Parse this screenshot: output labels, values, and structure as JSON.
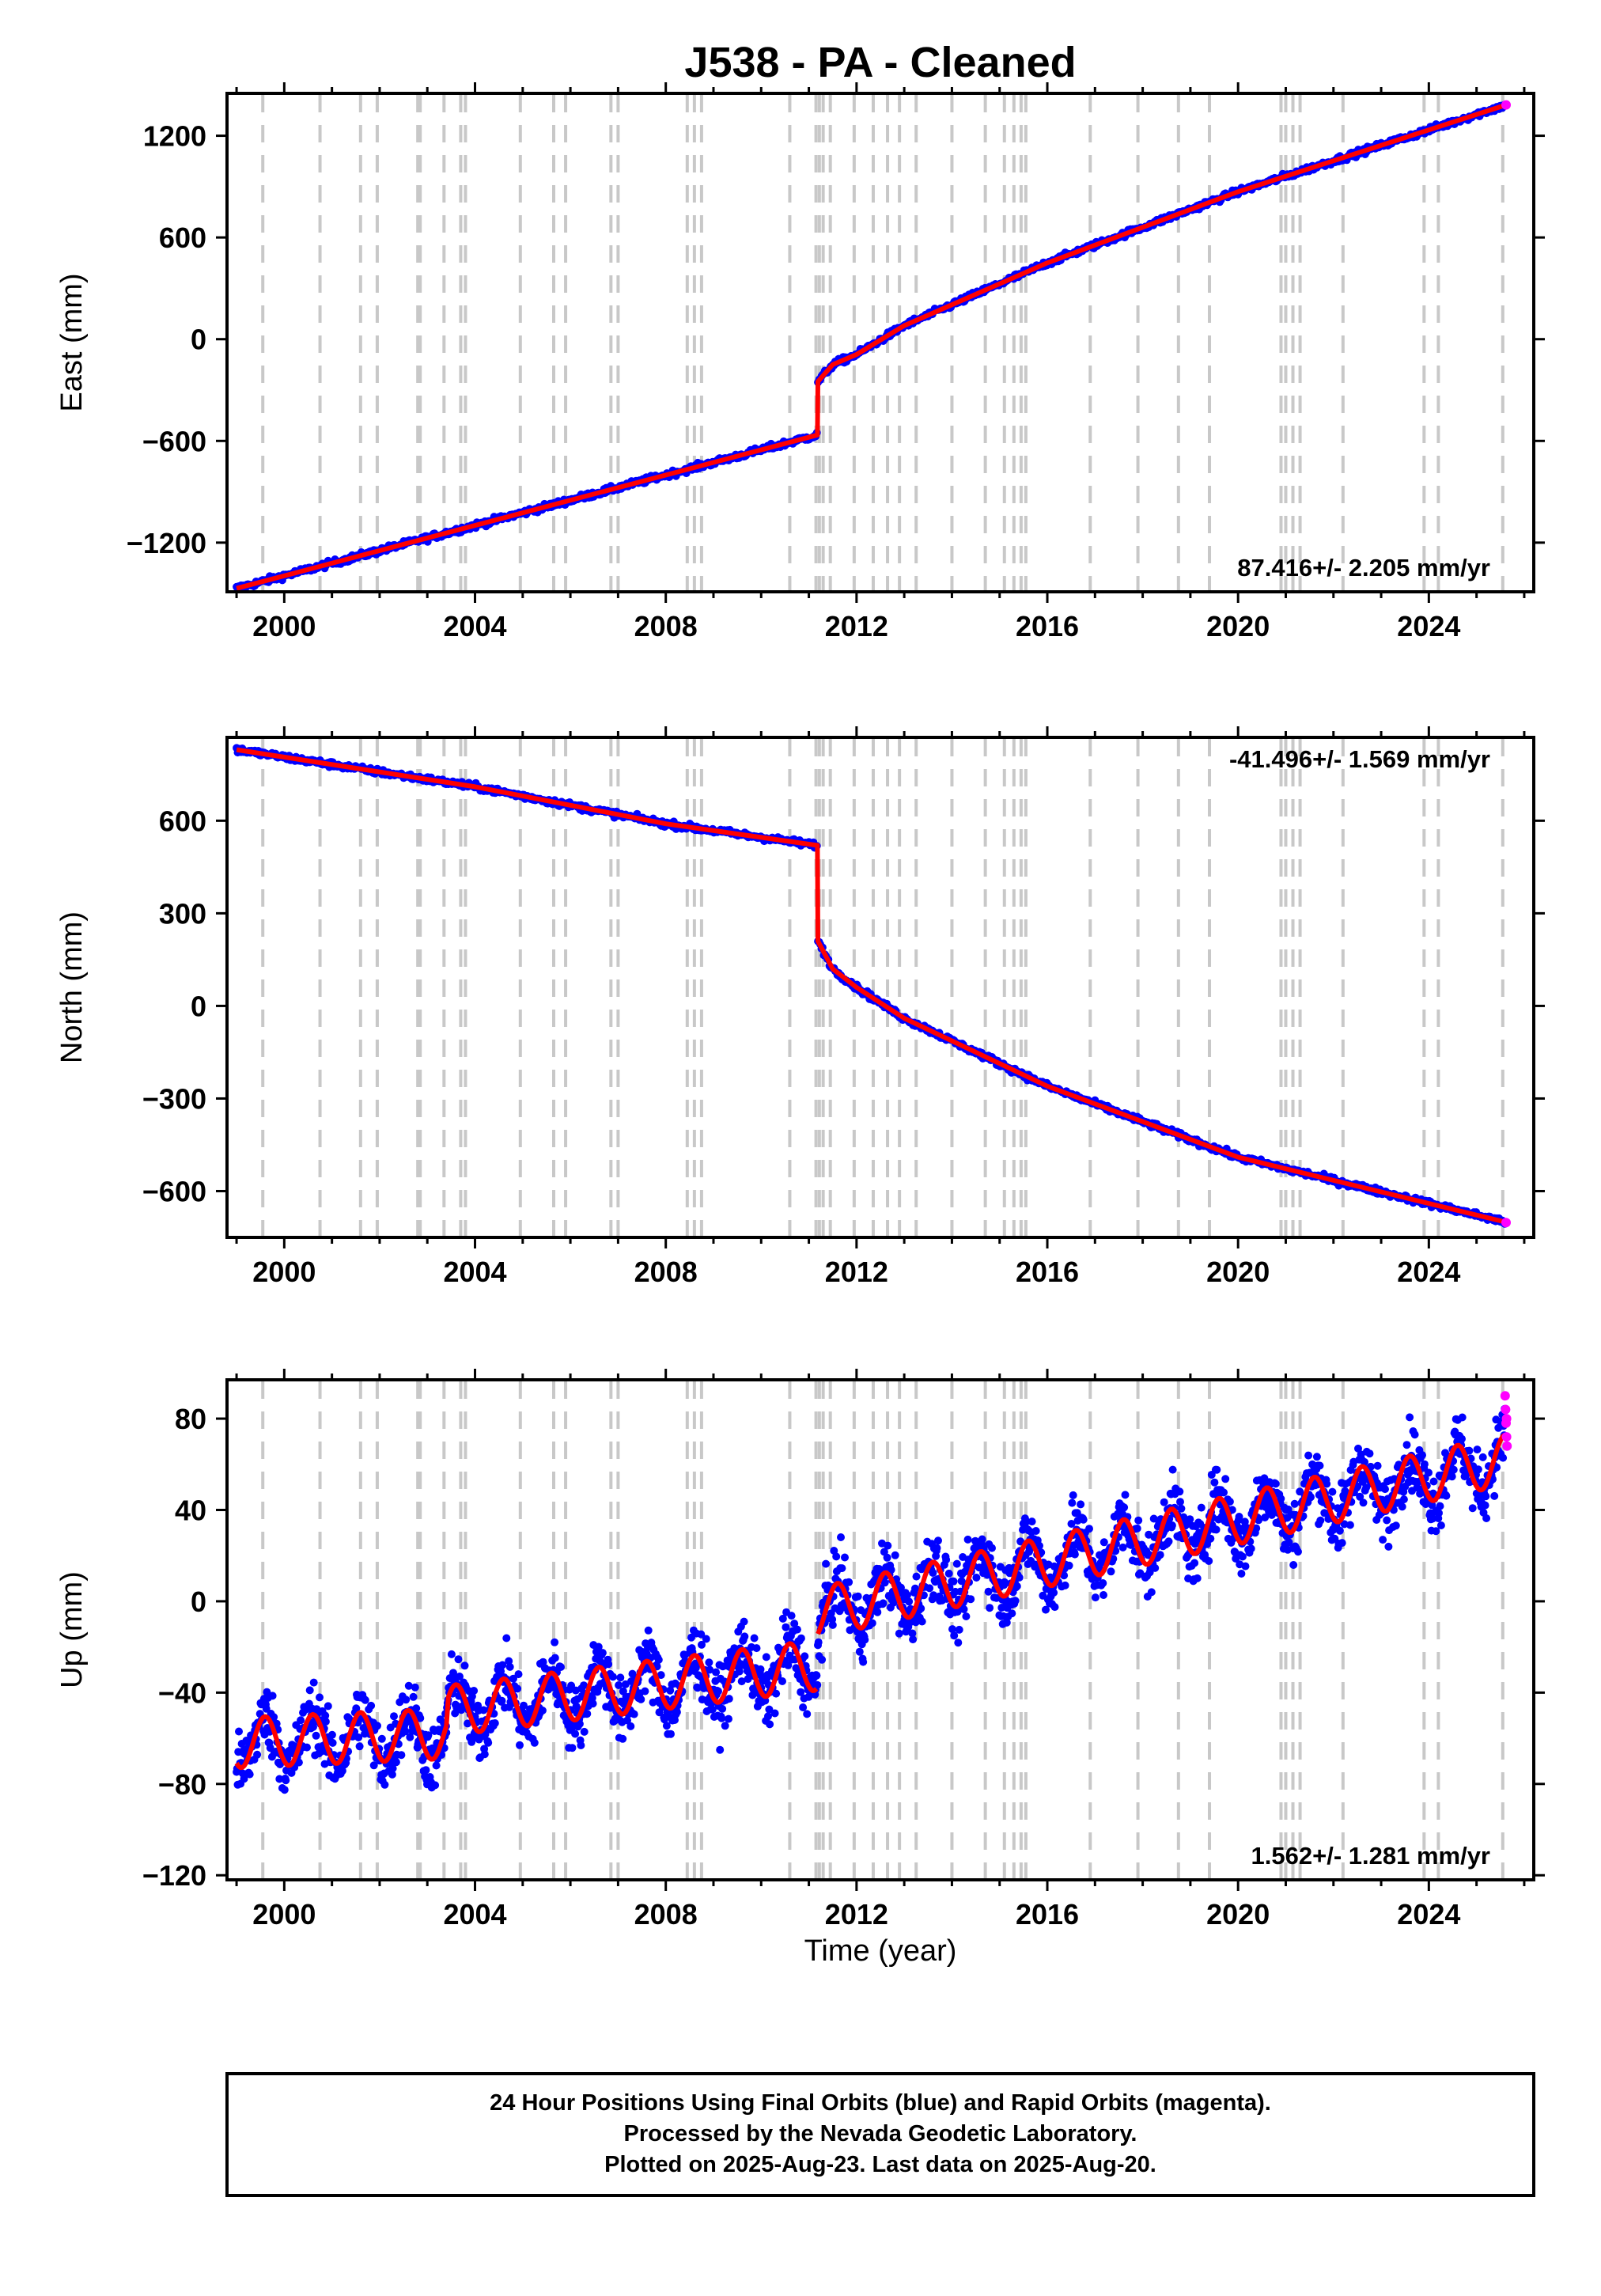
{
  "title": "J538  - PA - Cleaned",
  "colors": {
    "final_orbits": "#0000ff",
    "rapid_orbits": "#ff00ff",
    "model_fit": "#ff0000",
    "event_lines": "#c8c8c8",
    "axes": "#000000"
  },
  "xlabel": "Time (year)",
  "footer": {
    "line1": "24 Hour Positions Using Final Orbits (blue) and Rapid Orbits (magenta).",
    "line2": "Processed by the Nevada Geodetic Laboratory.",
    "line3": "Plotted on 2025-Aug-23. Last data on 2025-Aug-20."
  },
  "chart_data": [
    {
      "type": "scatter",
      "ylabel": "East (mm)",
      "rate_label": "87.416+/- 2.205 mm/yr",
      "rate_position": "bottom-right",
      "xlim": [
        1998.8,
        2026.2
      ],
      "ylim": [
        -1490,
        1450
      ],
      "xticks": [
        2000,
        2004,
        2008,
        2012,
        2016,
        2020,
        2024
      ],
      "yticks": [
        -1200,
        -600,
        0,
        600,
        1200
      ],
      "grid": false,
      "trend": [
        {
          "x": 1999.0,
          "y": -1470
        },
        {
          "x": 2011.18,
          "y": -565
        },
        {
          "x": 2011.19,
          "y": -250
        },
        {
          "x": 2011.5,
          "y": -150
        },
        {
          "x": 2012.0,
          "y": -90
        },
        {
          "x": 2013.0,
          "y": 80
        },
        {
          "x": 2016.0,
          "y": 450
        },
        {
          "x": 2020.0,
          "y": 870
        },
        {
          "x": 2025.6,
          "y": 1380
        }
      ],
      "rapid_points": [
        {
          "x": 2025.62,
          "y": 1382
        }
      ]
    },
    {
      "type": "scatter",
      "ylabel": "North (mm)",
      "rate_label": "-41.496+/- 1.569 mm/yr",
      "rate_position": "top-right",
      "xlim": [
        1998.8,
        2026.2
      ],
      "ylim": [
        -750,
        870
      ],
      "xticks": [
        2000,
        2004,
        2008,
        2012,
        2016,
        2020,
        2024
      ],
      "yticks": [
        -600,
        -300,
        0,
        300,
        600
      ],
      "grid": false,
      "trend": [
        {
          "x": 1999.0,
          "y": 830
        },
        {
          "x": 2004.0,
          "y": 710
        },
        {
          "x": 2008.0,
          "y": 590
        },
        {
          "x": 2011.18,
          "y": 520
        },
        {
          "x": 2011.19,
          "y": 210
        },
        {
          "x": 2011.5,
          "y": 120
        },
        {
          "x": 2012.0,
          "y": 60
        },
        {
          "x": 2013.0,
          "y": -40
        },
        {
          "x": 2016.0,
          "y": -260
        },
        {
          "x": 2020.0,
          "y": -490
        },
        {
          "x": 2025.6,
          "y": -700
        }
      ],
      "rapid_points": [
        {
          "x": 2025.62,
          "y": -702
        }
      ]
    },
    {
      "type": "scatter",
      "ylabel": "Up (mm)",
      "rate_label": "1.562+/- 1.281 mm/yr",
      "rate_position": "bottom-right",
      "xlim": [
        1998.8,
        2026.2
      ],
      "ylim": [
        -122,
        97
      ],
      "xticks": [
        2000,
        2004,
        2008,
        2012,
        2016,
        2020,
        2024
      ],
      "yticks": [
        -120,
        -80,
        -40,
        0,
        40,
        80
      ],
      "grid": false,
      "seasonal_trend": {
        "segments": [
          {
            "x_start": 1999.0,
            "x_end": 2003.4,
            "base_start": -62,
            "base_end": -58
          },
          {
            "x_start": 2003.4,
            "x_end": 2011.18,
            "base_start": -48,
            "base_end": -28
          },
          {
            "x_start": 2011.19,
            "x_end": 2025.6,
            "base_start": -5,
            "base_end": 62
          }
        ],
        "amplitude": 11,
        "scatter": 7
      },
      "rapid_points": [
        {
          "x": 2025.6,
          "y": 90
        },
        {
          "x": 2025.61,
          "y": 84
        },
        {
          "x": 2025.62,
          "y": 78
        },
        {
          "x": 2025.63,
          "y": 72
        },
        {
          "x": 2025.64,
          "y": 68
        },
        {
          "x": 2025.63,
          "y": 80
        }
      ]
    }
  ],
  "event_lines": [
    1999.55,
    2000.75,
    2001.6,
    2001.95,
    2002.8,
    2002.85,
    2003.35,
    2003.7,
    2003.8,
    2004.95,
    2005.65,
    2005.9,
    2006.85,
    2007.0,
    2008.45,
    2008.6,
    2008.75,
    2010.6,
    2011.15,
    2011.22,
    2011.3,
    2011.45,
    2011.95,
    2012.35,
    2012.65,
    2012.9,
    2013.25,
    2014.0,
    2014.7,
    2015.1,
    2015.3,
    2015.45,
    2015.55,
    2016.9,
    2017.9,
    2018.75,
    2019.4,
    2020.9,
    2021.0,
    2021.15,
    2021.3,
    2022.2,
    2023.9,
    2024.2,
    2025.55
  ]
}
